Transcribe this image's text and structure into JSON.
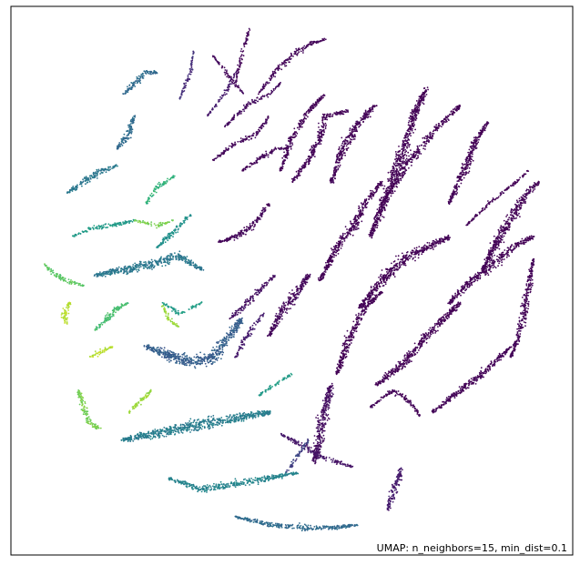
{
  "chart_data": {
    "type": "scatter",
    "title": "",
    "xlabel": "",
    "ylabel": "",
    "grid": false,
    "axes_ticks": false,
    "legend": "none",
    "colormap": "viridis",
    "annotation": "UMAP: n_neighbors=15, min_dist=0.1",
    "xlim": [
      0,
      100
    ],
    "ylim": [
      0,
      100
    ],
    "color_range": [
      0,
      1
    ],
    "clusters": [
      {
        "path": [
          [
            42.5,
            96.0
          ],
          [
            41.0,
            91.0
          ],
          [
            40.0,
            86.0
          ]
        ],
        "c": 0.02,
        "w": 0.9
      },
      {
        "path": [
          [
            36.0,
            91.0
          ],
          [
            39.0,
            87.0
          ],
          [
            41.5,
            84.0
          ]
        ],
        "c": 0.03,
        "w": 0.9
      },
      {
        "path": [
          [
            44.0,
            84.0
          ],
          [
            47.0,
            88.0
          ],
          [
            50.0,
            91.0
          ],
          [
            53.0,
            93.0
          ],
          [
            56.0,
            94.0
          ]
        ],
        "c": 0.02,
        "w": 1.3
      },
      {
        "path": [
          [
            38.0,
            78.0
          ],
          [
            42.0,
            82.0
          ],
          [
            46.0,
            84.0
          ],
          [
            48.0,
            86.0
          ]
        ],
        "c": 0.04,
        "w": 1.1
      },
      {
        "path": [
          [
            35.0,
            80.0
          ],
          [
            38.0,
            84.0
          ],
          [
            40.0,
            88.0
          ]
        ],
        "c": 0.1,
        "w": 0.9
      },
      {
        "path": [
          [
            30.0,
            83.0
          ],
          [
            32.0,
            88.0
          ],
          [
            32.5,
            92.0
          ]
        ],
        "c": 0.15,
        "w": 0.9
      },
      {
        "path": [
          [
            36.0,
            72.0
          ],
          [
            40.0,
            75.0
          ],
          [
            44.0,
            77.0
          ],
          [
            46.0,
            80.0
          ]
        ],
        "c": 0.03,
        "w": 1.2
      },
      {
        "path": [
          [
            48.0,
            70.0
          ],
          [
            50.0,
            76.0
          ],
          [
            53.0,
            81.0
          ],
          [
            56.0,
            84.0
          ]
        ],
        "c": 0.01,
        "w": 1.5
      },
      {
        "path": [
          [
            50.0,
            68.0
          ],
          [
            53.0,
            72.0
          ],
          [
            55.0,
            76.0
          ],
          [
            56.0,
            80.0
          ],
          [
            60.0,
            81.0
          ]
        ],
        "c": 0.01,
        "w": 1.8
      },
      {
        "path": [
          [
            57.0,
            68.0
          ],
          [
            59.0,
            74.0
          ],
          [
            62.0,
            79.0
          ],
          [
            65.0,
            82.0
          ]
        ],
        "c": 0.01,
        "w": 2.2
      },
      {
        "path": [
          [
            64.0,
            58.0
          ],
          [
            67.0,
            66.0
          ],
          [
            70.0,
            74.0
          ],
          [
            72.0,
            81.0
          ],
          [
            74.0,
            85.0
          ]
        ],
        "c": 0.0,
        "w": 2.6
      },
      {
        "path": [
          [
            66.0,
            64.0
          ],
          [
            71.0,
            72.0
          ],
          [
            76.0,
            78.0
          ],
          [
            80.0,
            82.0
          ]
        ],
        "c": 0.0,
        "w": 1.8
      },
      {
        "path": [
          [
            78.0,
            64.0
          ],
          [
            81.0,
            71.0
          ],
          [
            83.0,
            76.0
          ],
          [
            85.0,
            79.0
          ]
        ],
        "c": 0.01,
        "w": 2.0
      },
      {
        "path": [
          [
            81.0,
            60.0
          ],
          [
            85.0,
            64.0
          ],
          [
            90.0,
            68.0
          ],
          [
            92.0,
            70.0
          ]
        ],
        "c": 0.0,
        "w": 0.9
      },
      {
        "path": [
          [
            84.0,
            52.0
          ],
          [
            87.0,
            58.0
          ],
          [
            90.0,
            63.0
          ],
          [
            92.0,
            66.0
          ],
          [
            94.0,
            68.0
          ]
        ],
        "c": 0.01,
        "w": 2.4
      },
      {
        "path": [
          [
            41.0,
            70.0
          ],
          [
            44.0,
            72.0
          ],
          [
            47.0,
            74.0
          ],
          [
            49.0,
            74.0
          ]
        ],
        "c": 0.02,
        "w": 1.2
      },
      {
        "path": [
          [
            37.0,
            57.0
          ],
          [
            40.0,
            58.0
          ],
          [
            43.0,
            60.0
          ],
          [
            46.0,
            64.0
          ]
        ],
        "c": 0.02,
        "w": 1.6
      },
      {
        "path": [
          [
            55.0,
            50.0
          ],
          [
            58.0,
            56.0
          ],
          [
            61.0,
            60.0
          ],
          [
            63.0,
            64.0
          ],
          [
            66.0,
            68.0
          ]
        ],
        "c": 0.0,
        "w": 2.2
      },
      {
        "path": [
          [
            62.0,
            45.0
          ],
          [
            66.0,
            50.0
          ],
          [
            70.0,
            54.0
          ],
          [
            74.0,
            56.0
          ],
          [
            78.0,
            58.0
          ]
        ],
        "c": 0.0,
        "w": 2.6
      },
      {
        "path": [
          [
            78.0,
            46.0
          ],
          [
            82.0,
            50.0
          ],
          [
            86.0,
            53.0
          ],
          [
            89.0,
            56.0
          ],
          [
            93.0,
            58.0
          ]
        ],
        "c": 0.0,
        "w": 2.2
      },
      {
        "path": [
          [
            89.0,
            36.0
          ],
          [
            91.0,
            42.0
          ],
          [
            92.0,
            48.0
          ],
          [
            93.0,
            54.0
          ]
        ],
        "c": 0.01,
        "w": 1.8
      },
      {
        "path": [
          [
            46.0,
            40.0
          ],
          [
            48.0,
            44.0
          ],
          [
            51.0,
            48.0
          ],
          [
            53.0,
            51.0
          ]
        ],
        "c": 0.03,
        "w": 2.4
      },
      {
        "path": [
          [
            58.0,
            33.0
          ],
          [
            60.0,
            39.0
          ],
          [
            63.0,
            45.0
          ],
          [
            66.0,
            48.0
          ]
        ],
        "c": 0.0,
        "w": 2.0
      },
      {
        "path": [
          [
            65.0,
            31.0
          ],
          [
            70.0,
            35.0
          ],
          [
            74.0,
            40.0
          ],
          [
            78.0,
            44.0
          ],
          [
            80.0,
            46.0
          ]
        ],
        "c": 0.0,
        "w": 2.2
      },
      {
        "path": [
          [
            75.0,
            26.0
          ],
          [
            80.0,
            30.0
          ],
          [
            85.0,
            34.0
          ],
          [
            89.0,
            38.0
          ]
        ],
        "c": 0.01,
        "w": 1.8
      },
      {
        "path": [
          [
            64.0,
            27.0
          ],
          [
            68.0,
            30.0
          ],
          [
            71.0,
            28.0
          ],
          [
            73.0,
            25.0
          ]
        ],
        "c": 0.02,
        "w": 1.2
      },
      {
        "path": [
          [
            54.0,
            17.0
          ],
          [
            55.0,
            22.0
          ],
          [
            56.0,
            27.0
          ],
          [
            57.0,
            31.0
          ]
        ],
        "c": 0.05,
        "w": 2.6
      },
      {
        "path": [
          [
            48.0,
            22.0
          ],
          [
            52.0,
            20.0
          ],
          [
            55.0,
            18.0
          ],
          [
            58.0,
            17.0
          ],
          [
            61.0,
            16.0
          ]
        ],
        "c": 0.08,
        "w": 1.4
      },
      {
        "path": [
          [
            67.0,
            8.0
          ],
          [
            68.0,
            11.0
          ],
          [
            69.0,
            14.0
          ],
          [
            69.5,
            16.0
          ]
        ],
        "c": 0.1,
        "w": 1.8
      },
      {
        "path": [
          [
            49.0,
            15.0
          ],
          [
            51.0,
            18.0
          ],
          [
            53.0,
            21.0
          ]
        ],
        "c": 0.2,
        "w": 1.1
      },
      {
        "path": [
          [
            39.0,
            43.0
          ],
          [
            42.0,
            46.0
          ],
          [
            44.0,
            48.0
          ],
          [
            47.0,
            51.0
          ]
        ],
        "c": 0.06,
        "w": 1.4
      },
      {
        "path": [
          [
            40.0,
            36.0
          ],
          [
            42.0,
            40.0
          ],
          [
            45.0,
            44.0
          ]
        ],
        "c": 0.1,
        "w": 1.2
      },
      {
        "path": [
          [
            20.0,
            84.0
          ],
          [
            22.0,
            86.0
          ],
          [
            24.0,
            88.0
          ],
          [
            26.0,
            88.0
          ]
        ],
        "c": 0.35,
        "w": 1.6
      },
      {
        "path": [
          [
            19.0,
            74.0
          ],
          [
            21.0,
            77.0
          ],
          [
            22.0,
            80.0
          ]
        ],
        "c": 0.35,
        "w": 1.8
      },
      {
        "path": [
          [
            10.0,
            66.0
          ],
          [
            13.0,
            68.0
          ],
          [
            16.0,
            70.0
          ],
          [
            19.0,
            71.0
          ]
        ],
        "c": 0.4,
        "w": 1.6
      },
      {
        "path": [
          [
            11.0,
            58.0
          ],
          [
            14.0,
            59.5
          ],
          [
            18.0,
            60.0
          ],
          [
            22.0,
            61.0
          ]
        ],
        "c": 0.55,
        "w": 1.2
      },
      {
        "path": [
          [
            15.0,
            51.0
          ],
          [
            20.0,
            52.0
          ],
          [
            25.0,
            53.0
          ],
          [
            30.0,
            54.5
          ],
          [
            34.0,
            52.0
          ]
        ],
        "c": 0.4,
        "w": 2.4
      },
      {
        "path": [
          [
            6.0,
            53.0
          ],
          [
            8.0,
            51.0
          ],
          [
            10.0,
            50.0
          ],
          [
            13.0,
            49.0
          ]
        ],
        "c": 0.75,
        "w": 1.2
      },
      {
        "path": [
          [
            24.0,
            64.0
          ],
          [
            26.0,
            67.0
          ],
          [
            29.0,
            69.0
          ]
        ],
        "c": 0.65,
        "w": 1.2
      },
      {
        "path": [
          [
            26.0,
            56.0
          ],
          [
            28.0,
            58.0
          ],
          [
            30.0,
            60.0
          ],
          [
            32.0,
            62.0
          ]
        ],
        "c": 0.5,
        "w": 1.4
      },
      {
        "path": [
          [
            22.0,
            61.0
          ],
          [
            26.0,
            60.0
          ],
          [
            29.0,
            61.0
          ]
        ],
        "c": 0.8,
        "w": 1.0
      },
      {
        "path": [
          [
            24.0,
            38.0
          ],
          [
            28.0,
            36.5
          ],
          [
            32.0,
            35.0
          ],
          [
            36.0,
            36.0
          ],
          [
            39.0,
            40.0
          ],
          [
            41.0,
            43.0
          ]
        ],
        "c": 0.3,
        "w": 3.0
      },
      {
        "path": [
          [
            27.0,
            46.0
          ],
          [
            30.0,
            44.0
          ],
          [
            34.0,
            46.0
          ]
        ],
        "c": 0.55,
        "w": 1.0
      },
      {
        "path": [
          [
            15.0,
            41.0
          ],
          [
            17.0,
            43.0
          ],
          [
            19.0,
            45.0
          ],
          [
            21.0,
            46.0
          ]
        ],
        "c": 0.7,
        "w": 1.6
      },
      {
        "path": [
          [
            10.0,
            42.0
          ],
          [
            9.5,
            44.0
          ],
          [
            10.5,
            46.0
          ]
        ],
        "c": 0.9,
        "w": 1.6
      },
      {
        "path": [
          [
            14.0,
            36.0
          ],
          [
            16.0,
            37.0
          ],
          [
            18.0,
            38.0
          ]
        ],
        "c": 0.9,
        "w": 1.2
      },
      {
        "path": [
          [
            27.0,
            45.5
          ],
          [
            28.0,
            43.0
          ],
          [
            30.0,
            41.5
          ]
        ],
        "c": 0.85,
        "w": 1.1
      },
      {
        "path": [
          [
            12.0,
            30.0
          ],
          [
            13.0,
            27.0
          ],
          [
            14.0,
            24.0
          ],
          [
            16.0,
            23.0
          ]
        ],
        "c": 0.8,
        "w": 1.6
      },
      {
        "path": [
          [
            21.0,
            26.0
          ],
          [
            23.0,
            28.0
          ],
          [
            25.0,
            30.0
          ]
        ],
        "c": 0.85,
        "w": 1.2
      },
      {
        "path": [
          [
            20.0,
            21.0
          ],
          [
            25.0,
            22.0
          ],
          [
            30.0,
            23.0
          ],
          [
            35.0,
            24.0
          ],
          [
            40.0,
            25.0
          ],
          [
            46.0,
            26.0
          ]
        ],
        "c": 0.42,
        "w": 2.8
      },
      {
        "path": [
          [
            28.0,
            14.0
          ],
          [
            34.0,
            12.0
          ],
          [
            40.0,
            13.0
          ],
          [
            46.0,
            14.0
          ],
          [
            51.0,
            15.0
          ]
        ],
        "c": 0.45,
        "w": 1.8
      },
      {
        "path": [
          [
            40.0,
            7.0
          ],
          [
            46.0,
            5.5
          ],
          [
            52.0,
            5.0
          ],
          [
            58.0,
            5.0
          ],
          [
            62.0,
            5.5
          ]
        ],
        "c": 0.35,
        "w": 1.4
      },
      {
        "path": [
          [
            44.0,
            29.0
          ],
          [
            47.0,
            31.0
          ],
          [
            50.0,
            33.0
          ]
        ],
        "c": 0.55,
        "w": 0.9
      }
    ]
  }
}
